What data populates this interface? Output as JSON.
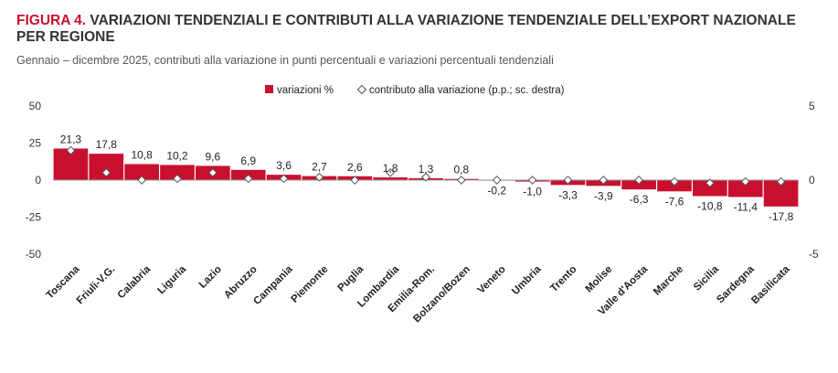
{
  "header": {
    "figure_label": "FIGURA 4.",
    "title_text": " VARIAZIONI TENDENZIALI E CONTRIBUTI ALLA VARIAZIONE TENDENZIALE DELL’EXPORT NAZIONALE PER REGIONE",
    "subtitle": "Gennaio – dicembre 2025, contributi alla variazione in punti percentuali e variazioni percentuali tendenziali"
  },
  "colors": {
    "bar": "#c8102e",
    "marker_stroke": "#555555",
    "marker_fill": "#ffffff"
  },
  "chart_data": {
    "type": "bar",
    "title": "Variazioni tendenziali e contributi alla variazione tendenziale dell'export nazionale per regione",
    "categories": [
      "Toscana",
      "Friuli-V.G.",
      "Calabria",
      "Liguria",
      "Lazio",
      "Abruzzo",
      "Campania",
      "Piemonte",
      "Puglia",
      "Lombardia",
      "Emilia-Rom.",
      "Bolzano/Bozen",
      "Veneto",
      "Umbria",
      "Trento",
      "Molise",
      "Valle d'Aosta",
      "Marche",
      "Sicilia",
      "Sardegna",
      "Basilicata"
    ],
    "series": [
      {
        "name": "variazioni %",
        "type": "bar",
        "axis": "left",
        "values": [
          21.3,
          17.8,
          10.8,
          10.2,
          9.6,
          6.9,
          3.6,
          2.7,
          2.6,
          1.8,
          1.3,
          0.8,
          -0.2,
          -1.0,
          -3.3,
          -3.9,
          -6.3,
          -7.6,
          -10.8,
          -11.4,
          -17.8
        ],
        "labels": [
          "21,3",
          "17,8",
          "10,8",
          "10,2",
          "9,6",
          "6,9",
          "3,6",
          "2,7",
          "2,6",
          "1,8",
          "1,3",
          "0,8",
          "-0,2",
          "-1,0",
          "-3,3",
          "-3,9",
          "-6,3",
          "-7,6",
          "-10,8",
          "-11,4",
          "-17,8"
        ]
      },
      {
        "name": "contributo alla variazione (p.p.; sc. destra)",
        "type": "scatter",
        "axis": "right",
        "values": [
          2.0,
          0.5,
          0.0,
          0.1,
          0.5,
          0.1,
          0.1,
          0.2,
          0.0,
          0.5,
          0.2,
          0.0,
          0.0,
          0.0,
          0.0,
          0.0,
          0.0,
          -0.1,
          -0.2,
          -0.1,
          -0.1
        ]
      }
    ],
    "y_left": {
      "ylim": [
        -50,
        50
      ],
      "ticks": [
        50,
        25,
        0,
        -25,
        -50
      ],
      "tick_labels": [
        "50",
        "25",
        "0",
        "-25",
        "-50"
      ]
    },
    "y_right": {
      "ylim": [
        -5,
        5
      ],
      "ticks": [
        5,
        0,
        -5
      ],
      "tick_labels": [
        "5",
        "0",
        "-5"
      ]
    },
    "legend": {
      "position": "top-center",
      "entries": [
        "variazioni %",
        "contributo alla variazione (p.p.; sc. destra)"
      ]
    },
    "grid": false
  }
}
